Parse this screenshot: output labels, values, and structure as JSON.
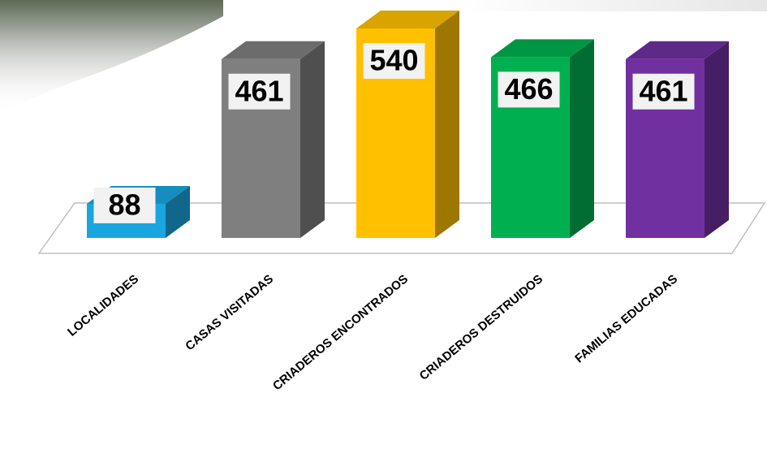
{
  "chart_data": {
    "type": "bar3d",
    "categories": [
      "LOCALIDADES",
      "CASAS VISITADAS",
      "CRIADEROS ENCONTRADOS",
      "CRIADEROS DESTRUIDOS",
      "FAMILIAS EDUCADAS"
    ],
    "values": [
      88,
      461,
      540,
      466,
      461
    ],
    "colors": [
      "#19a6e0",
      "#7f7f7f",
      "#ffc000",
      "#00b050",
      "#7030a0"
    ]
  }
}
